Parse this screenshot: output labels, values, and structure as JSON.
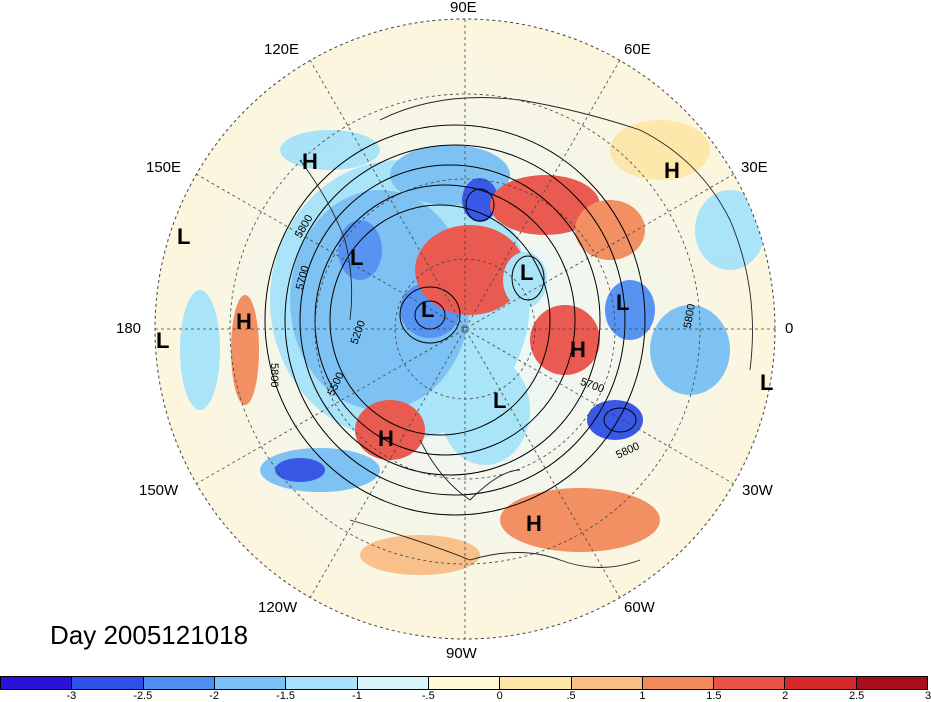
{
  "title": "Day 2005121018",
  "lon_labels": {
    "deg90e": "90E",
    "deg120e": "120E",
    "deg60e": "60E",
    "deg150e": "150E",
    "deg30e": "30E",
    "deg180": "180",
    "deg0": "0",
    "deg150w": "150W",
    "deg30w": "30W",
    "deg120w": "120W",
    "deg60w": "60W",
    "deg90w": "90W"
  },
  "contour_labels": {
    "c5800a": "5800",
    "c5700a": "5700",
    "c5200": "5200",
    "c5500": "5500",
    "c5800b": "5800",
    "c5700b": "5700",
    "c5800c": "5800",
    "c5800d": "5800"
  },
  "pressure_centers": {
    "h_130e": "H",
    "h_40e": "H",
    "l_160e": "L",
    "l_120e": "L",
    "h_180": "H",
    "l_180": "L",
    "l_polar_e": "L",
    "l_polar": "L",
    "l_europe": "L",
    "h_north_sea": "H",
    "h_west_us": "H",
    "l_hudson": "L",
    "l_east_atl": "L",
    "h_atlantic": "H"
  },
  "colorbar": {
    "colors": [
      "#2a12d6",
      "#2f50e6",
      "#4f8ff2",
      "#78c0f5",
      "#a6e3fa",
      "#d8f5fd",
      "#fff7d6",
      "#fde6a8",
      "#f9be86",
      "#f28a5c",
      "#e95248",
      "#d42a2a",
      "#a50f1c"
    ],
    "ticks": [
      "-3",
      "-2.5",
      "-2",
      "-1.5",
      "-1",
      "-.5",
      "0",
      ".5",
      "1",
      "1.5",
      "2",
      "2.5",
      "3"
    ]
  }
}
